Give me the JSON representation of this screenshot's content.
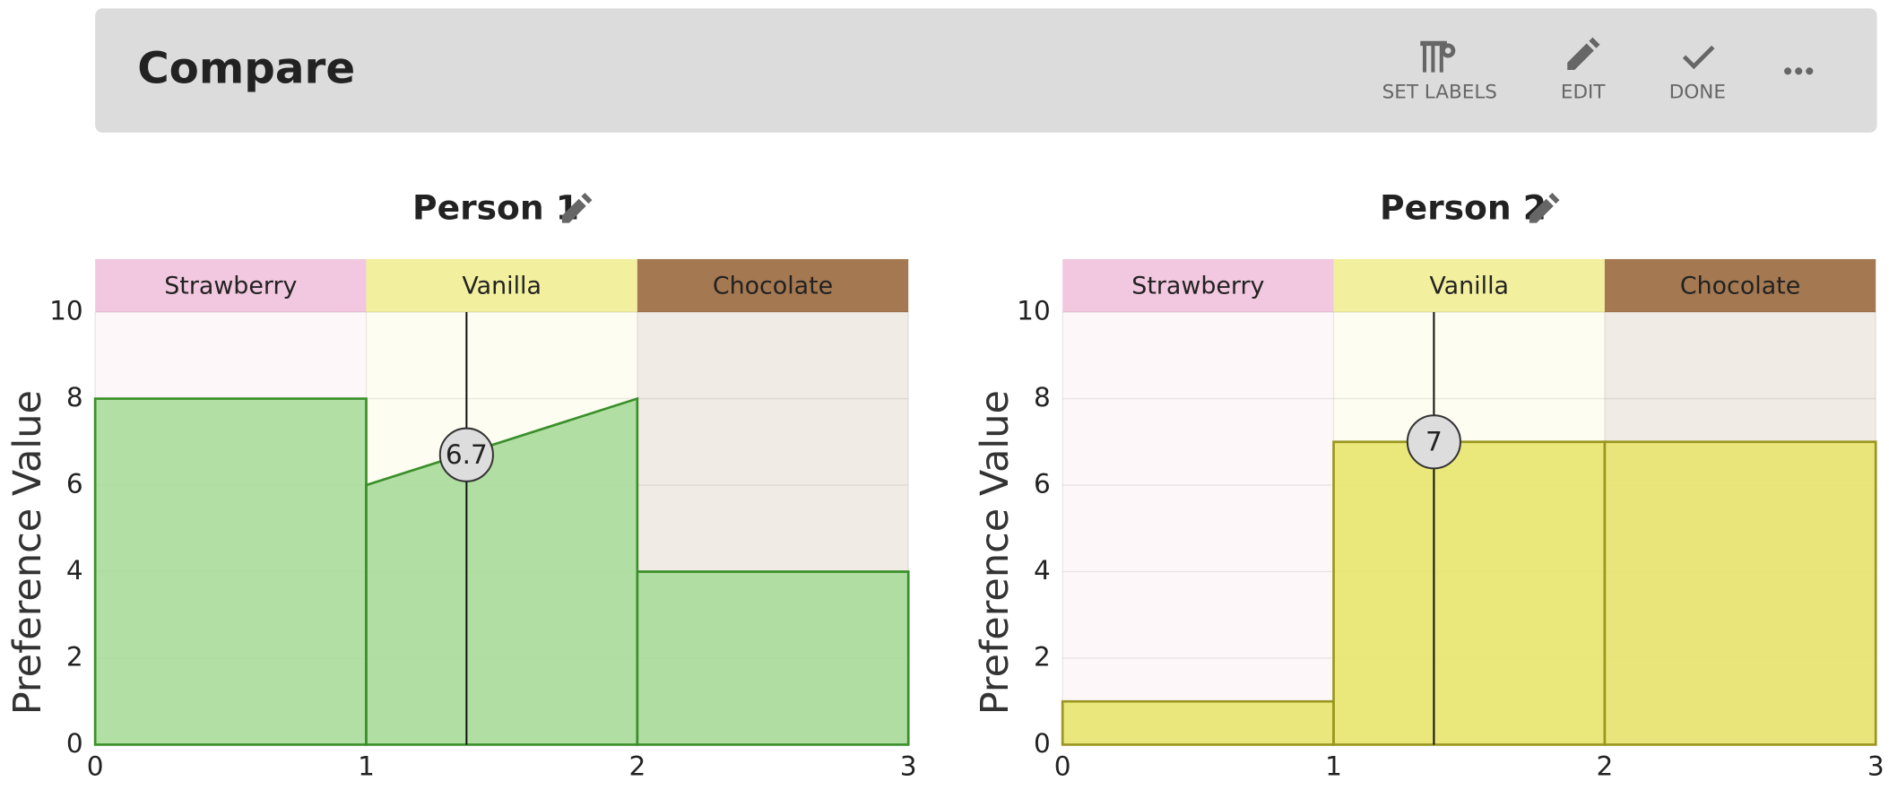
{
  "header": {
    "title": "Compare",
    "actions": [
      "SET LABELS",
      "EDIT",
      "DONE"
    ]
  },
  "charts": [
    {
      "title": "Person 1",
      "y_label": "Preference Value",
      "categories": [
        {
          "name": "Strawberry",
          "color": "#f1c8df"
        },
        {
          "name": "Vanilla",
          "color": "#f2f09e"
        },
        {
          "name": "Chocolate",
          "color": "#a47850"
        }
      ],
      "xlim": [
        0,
        3
      ],
      "xticks": [
        0,
        1,
        2,
        3
      ],
      "ylim": [
        0,
        10
      ],
      "yticks": [
        0,
        2,
        4,
        6,
        8,
        10
      ],
      "fill": "#a9dc9a",
      "stroke": "#3a8f2a",
      "segments": [
        {
          "x": [
            0,
            1
          ],
          "y": [
            8,
            8
          ]
        },
        {
          "x": [
            1,
            2
          ],
          "y": [
            6,
            8
          ]
        },
        {
          "x": [
            2,
            3
          ],
          "y": [
            4,
            4
          ]
        }
      ],
      "marker": {
        "x": 1.37,
        "value": 6.7
      }
    },
    {
      "title": "Person 2",
      "y_label": "Preference Value",
      "categories": [
        {
          "name": "Strawberry",
          "color": "#f1c8df"
        },
        {
          "name": "Vanilla",
          "color": "#f2f09e"
        },
        {
          "name": "Chocolate",
          "color": "#a47850"
        }
      ],
      "xlim": [
        0,
        3
      ],
      "xticks": [
        0,
        1,
        2,
        3
      ],
      "ylim": [
        0,
        10
      ],
      "yticks": [
        0,
        2,
        4,
        6,
        8,
        10
      ],
      "fill": "#e8e46e",
      "stroke": "#9a9620",
      "segments": [
        {
          "x": [
            0,
            1
          ],
          "y": [
            1,
            1
          ]
        },
        {
          "x": [
            1,
            2
          ],
          "y": [
            7,
            7
          ]
        },
        {
          "x": [
            2,
            3
          ],
          "y": [
            7,
            7
          ]
        }
      ],
      "marker": {
        "x": 1.37,
        "value": 7
      }
    }
  ]
}
